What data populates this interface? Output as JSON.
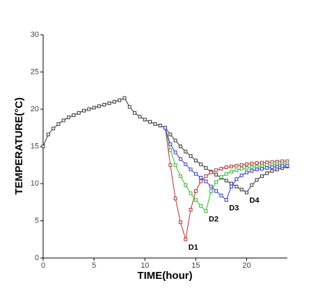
{
  "chart_data": {
    "type": "line",
    "xlabel": "TIME(hour)",
    "ylabel": "TEMPERATURE(°C)",
    "xlim": [
      0,
      24
    ],
    "xticks": [
      0,
      5,
      10,
      15,
      20
    ],
    "ylim": [
      0,
      30
    ],
    "yticks": [
      0,
      5,
      10,
      15,
      20,
      25,
      30
    ],
    "x": [
      0,
      0.5,
      1,
      1.5,
      2,
      2.5,
      3,
      3.5,
      4,
      4.5,
      5,
      5.5,
      6,
      6.5,
      7,
      7.5,
      8,
      8.5,
      9,
      9.5,
      10,
      10.5,
      11,
      11.5,
      12,
      12.5,
      13,
      13.5,
      14,
      14.5,
      15,
      15.5,
      16,
      16.5,
      17,
      17.5,
      18,
      18.5,
      19,
      19.5,
      20,
      20.5,
      21,
      21.5,
      22,
      22.5,
      23,
      23.5,
      24
    ],
    "series": [
      {
        "name": "D4",
        "color": "#333333",
        "values": [
          15,
          16.6,
          17.4,
          18.0,
          18.5,
          18.9,
          19.2,
          19.5,
          19.8,
          20.0,
          20.2,
          20.4,
          20.6,
          20.8,
          21.0,
          21.2,
          21.5,
          20.3,
          19.5,
          19.0,
          18.6,
          18.3,
          18.0,
          17.8,
          17.5,
          16.6,
          15.8,
          15.0,
          14.3,
          13.7,
          13.1,
          12.6,
          12.1,
          11.6,
          11.2,
          10.8,
          10.4,
          10.0,
          9.6,
          9.2,
          8.8,
          9.8,
          10.5,
          11.0,
          11.4,
          11.7,
          11.9,
          12.1,
          12.3
        ]
      },
      {
        "name": "D1",
        "color": "#b03030",
        "values": [
          null,
          null,
          null,
          null,
          null,
          null,
          null,
          null,
          null,
          null,
          null,
          null,
          null,
          null,
          null,
          null,
          null,
          null,
          null,
          null,
          null,
          null,
          null,
          null,
          17.5,
          12.5,
          8,
          4.8,
          2.5,
          6.5,
          9.0,
          10.3,
          11.0,
          11.5,
          11.8,
          12.0,
          12.2,
          12.3,
          12.4,
          12.5,
          12.6,
          12.7,
          12.75,
          12.8,
          12.85,
          12.9,
          12.95,
          13.0,
          13.0
        ]
      },
      {
        "name": "D2",
        "color": "#2db82d",
        "values": [
          null,
          null,
          null,
          null,
          null,
          null,
          null,
          null,
          null,
          null,
          null,
          null,
          null,
          null,
          null,
          null,
          null,
          null,
          null,
          null,
          null,
          null,
          null,
          null,
          17.5,
          14.5,
          12.5,
          11.0,
          9.8,
          8.7,
          7.8,
          7.0,
          6.3,
          9.0,
          10.2,
          10.9,
          11.3,
          11.6,
          11.8,
          12.0,
          12.1,
          12.2,
          12.3,
          12.4,
          12.5,
          12.55,
          12.6,
          12.65,
          12.7
        ]
      },
      {
        "name": "D3",
        "color": "#3333cc",
        "values": [
          null,
          null,
          null,
          null,
          null,
          null,
          null,
          null,
          null,
          null,
          null,
          null,
          null,
          null,
          null,
          null,
          null,
          null,
          null,
          null,
          null,
          null,
          null,
          null,
          17.5,
          15.3,
          14.2,
          13.3,
          12.6,
          11.9,
          11.3,
          10.8,
          10.3,
          9.6,
          9.0,
          8.4,
          7.8,
          9.6,
          10.6,
          11.1,
          11.5,
          11.7,
          11.9,
          12.0,
          12.1,
          12.2,
          12.3,
          12.35,
          12.4
        ]
      }
    ]
  }
}
